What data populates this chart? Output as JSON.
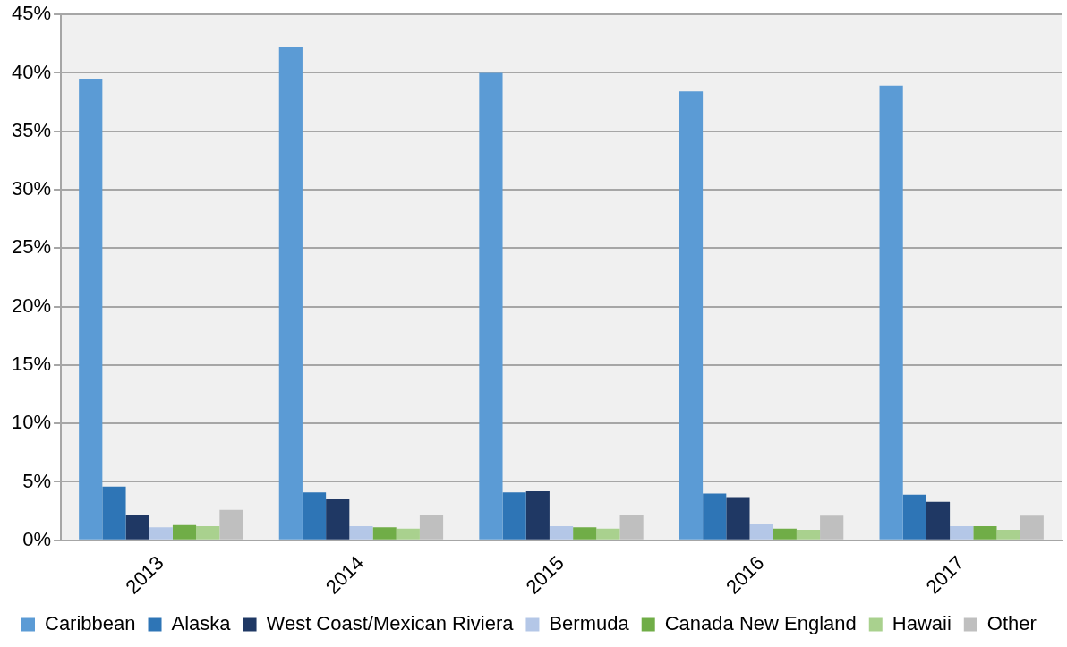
{
  "chart_data": {
    "type": "bar",
    "categories": [
      "2013",
      "2014",
      "2015",
      "2016",
      "2017"
    ],
    "series": [
      {
        "name": "Caribbean",
        "color": "#5b9bd5",
        "values": [
          39.5,
          42.2,
          40.0,
          38.4,
          38.9
        ]
      },
      {
        "name": "Alaska",
        "color": "#2e75b6",
        "values": [
          4.6,
          4.1,
          4.1,
          4.0,
          3.9
        ]
      },
      {
        "name": "West Coast/Mexican Riviera",
        "color": "#1f3864",
        "values": [
          2.2,
          3.5,
          4.2,
          3.7,
          3.3
        ]
      },
      {
        "name": "Bermuda",
        "color": "#b4c7e7",
        "values": [
          1.1,
          1.2,
          1.2,
          1.4,
          1.2
        ]
      },
      {
        "name": "Canada New England",
        "color": "#70ad47",
        "values": [
          1.3,
          1.1,
          1.1,
          1.0,
          1.2
        ]
      },
      {
        "name": "Hawaii",
        "color": "#a9d18e",
        "values": [
          1.2,
          1.0,
          1.0,
          0.9,
          0.9
        ]
      },
      {
        "name": "Other",
        "color": "#bfbfbf",
        "values": [
          2.6,
          2.2,
          2.2,
          2.1,
          2.1
        ]
      }
    ],
    "ylim": [
      0,
      45
    ],
    "yticks": [
      {
        "value": 0,
        "label": "0%"
      },
      {
        "value": 5,
        "label": "5%"
      },
      {
        "value": 10,
        "label": "10%"
      },
      {
        "value": 15,
        "label": "15%"
      },
      {
        "value": 20,
        "label": "20%"
      },
      {
        "value": 25,
        "label": "25%"
      },
      {
        "value": 30,
        "label": "30%"
      },
      {
        "value": 35,
        "label": "35%"
      },
      {
        "value": 40,
        "label": "40%"
      },
      {
        "value": 45,
        "label": "45%"
      }
    ],
    "grid": "y",
    "legend": "bottom"
  }
}
